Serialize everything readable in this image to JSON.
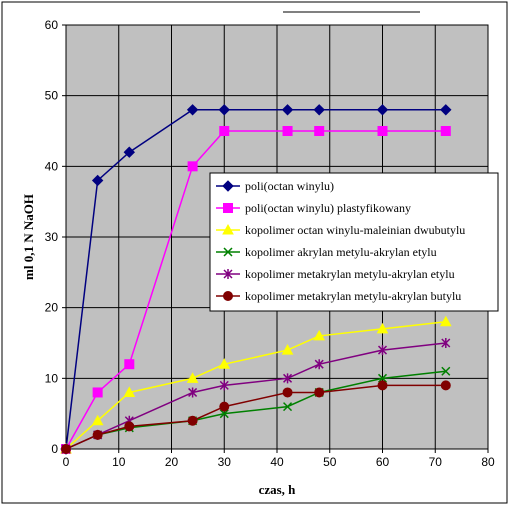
{
  "chart_data": {
    "type": "line",
    "xlabel": "czas, h",
    "ylabel": "ml 0,1 N NaOH",
    "xlim": [
      0,
      80
    ],
    "ylim": [
      0,
      60
    ],
    "x_ticks": [
      0,
      10,
      20,
      30,
      40,
      50,
      60,
      70,
      80
    ],
    "y_ticks": [
      0,
      10,
      20,
      30,
      40,
      50,
      60
    ],
    "grid": true,
    "legend_position": "right-middle",
    "plot_background": "#c0c0c0",
    "series": [
      {
        "name": "poli(octan winylu)",
        "color": "#000080",
        "marker": "diamond",
        "points": [
          [
            0,
            0
          ],
          [
            6,
            38
          ],
          [
            12,
            42
          ],
          [
            24,
            48
          ],
          [
            30,
            48
          ],
          [
            42,
            48
          ],
          [
            48,
            48
          ],
          [
            60,
            48
          ],
          [
            72,
            48
          ]
        ]
      },
      {
        "name": "poli(octan winylu) plastyfikowany",
        "color": "#ff00ff",
        "marker": "square",
        "points": [
          [
            0,
            0
          ],
          [
            6,
            8
          ],
          [
            12,
            12
          ],
          [
            24,
            40
          ],
          [
            30,
            45
          ],
          [
            42,
            45
          ],
          [
            48,
            45
          ],
          [
            60,
            45
          ],
          [
            72,
            45
          ]
        ]
      },
      {
        "name": "kopolimer octan winylu-maleinian dwubutylu",
        "color": "#ffff00",
        "marker": "triangle",
        "points": [
          [
            0,
            0
          ],
          [
            6,
            4
          ],
          [
            12,
            8
          ],
          [
            24,
            10
          ],
          [
            30,
            12
          ],
          [
            42,
            14
          ],
          [
            48,
            16
          ],
          [
            60,
            17
          ],
          [
            72,
            18
          ]
        ]
      },
      {
        "name": "kopolimer akrylan metylu-akrylan etylu",
        "color": "#008000",
        "marker": "x",
        "points": [
          [
            0,
            0
          ],
          [
            6,
            2
          ],
          [
            12,
            3
          ],
          [
            24,
            4
          ],
          [
            30,
            5
          ],
          [
            42,
            6
          ],
          [
            48,
            8
          ],
          [
            60,
            10
          ],
          [
            72,
            11
          ]
        ]
      },
      {
        "name": "kopolimer metakrylan metylu-akrylan etylu",
        "color": "#800080",
        "marker": "star",
        "points": [
          [
            0,
            0
          ],
          [
            6,
            2
          ],
          [
            12,
            4
          ],
          [
            24,
            8
          ],
          [
            30,
            9
          ],
          [
            42,
            10
          ],
          [
            48,
            12
          ],
          [
            60,
            14
          ],
          [
            72,
            15
          ]
        ]
      },
      {
        "name": "kopolimer metakrylan metylu-akrylan butylu",
        "color": "#800000",
        "marker": "circle",
        "points": [
          [
            0,
            0
          ],
          [
            6,
            2
          ],
          [
            12,
            3.2
          ],
          [
            24,
            4
          ],
          [
            30,
            6
          ],
          [
            42,
            8
          ],
          [
            48,
            8
          ],
          [
            60,
            9
          ],
          [
            72,
            9
          ]
        ]
      }
    ]
  }
}
